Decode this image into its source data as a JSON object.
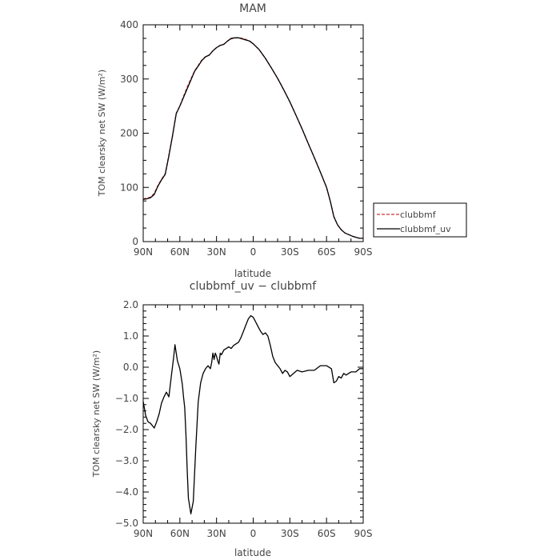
{
  "chart_data": [
    {
      "type": "line",
      "title": "MAM",
      "xlabel": "",
      "ylabel": "TOM clearsky net SW (W/m²)",
      "xlim": [
        90,
        -90
      ],
      "ylim": [
        0,
        400
      ],
      "x_ticks": [
        90,
        60,
        30,
        0,
        -30,
        -60,
        -90
      ],
      "x_tick_labels": [
        "90N",
        "60N",
        "30N",
        "0",
        "30S",
        "60S",
        "90S"
      ],
      "y_ticks": [
        0,
        100,
        200,
        300,
        400
      ],
      "y_tick_labels": [
        "0",
        "100",
        "200",
        "300",
        "400"
      ],
      "legend": {
        "placement": "right",
        "entries": [
          "clubbmf",
          "clubbmf_uv"
        ]
      },
      "series": [
        {
          "name": "clubbmf",
          "color": "#d03030",
          "dash": "dashed",
          "x": [
            90,
            87,
            84,
            81,
            78,
            75,
            72,
            69,
            66,
            63,
            60,
            57,
            54,
            51,
            48,
            45,
            42,
            39,
            36,
            33,
            30,
            27,
            24,
            21,
            18,
            15,
            12,
            9,
            6,
            3,
            0,
            -5,
            -10,
            -15,
            -20,
            -25,
            -30,
            -35,
            -40,
            -45,
            -50,
            -55,
            -60,
            -63,
            -66,
            -69,
            -72,
            -75,
            -78,
            -81,
            -84,
            -87,
            -90
          ],
          "y": [
            79,
            80,
            82,
            89,
            103,
            115,
            125,
            160,
            195,
            237,
            250,
            268,
            285,
            300,
            315,
            325,
            335,
            341,
            344,
            352,
            358,
            362,
            364,
            370,
            374,
            376,
            376,
            375,
            373,
            370,
            365,
            354,
            338,
            320,
            301,
            280,
            258,
            233,
            208,
            181,
            155,
            128,
            100,
            75,
            46,
            31,
            22,
            16,
            13,
            10,
            8,
            6,
            6
          ]
        },
        {
          "name": "clubbmf_uv",
          "color": "#000000",
          "dash": "solid",
          "x": [
            90,
            87,
            84,
            81,
            78,
            75,
            72,
            69,
            66,
            63,
            60,
            57,
            54,
            51,
            48,
            45,
            42,
            39,
            36,
            33,
            30,
            27,
            24,
            21,
            18,
            15,
            12,
            9,
            6,
            3,
            0,
            -5,
            -10,
            -15,
            -20,
            -25,
            -30,
            -35,
            -40,
            -45,
            -50,
            -55,
            -60,
            -63,
            -66,
            -69,
            -72,
            -75,
            -78,
            -81,
            -84,
            -87,
            -90
          ],
          "y": [
            78,
            79,
            81,
            87,
            102,
            114,
            124,
            158,
            196,
            236,
            250,
            266,
            282,
            298,
            314,
            324,
            334,
            341,
            344,
            352,
            358,
            362,
            364,
            370,
            375,
            376,
            376,
            374,
            372,
            370,
            365,
            354,
            338,
            320,
            301,
            280,
            258,
            233,
            208,
            181,
            155,
            128,
            100,
            75,
            46,
            31,
            22,
            16,
            13,
            10,
            8,
            6,
            6
          ]
        }
      ]
    },
    {
      "type": "line",
      "title": "clubbmf_uv − clubbmf",
      "xlabel": "latitude",
      "ylabel": "TOM clearsky net SW (W/m²)",
      "xlim": [
        90,
        -90
      ],
      "ylim": [
        -5.0,
        2.0
      ],
      "x_ticks": [
        90,
        60,
        30,
        0,
        -30,
        -60,
        -90
      ],
      "x_tick_labels": [
        "90N",
        "60N",
        "30N",
        "0",
        "30S",
        "60S",
        "90S"
      ],
      "y_ticks": [
        -5,
        -4,
        -3,
        -2,
        -1,
        0,
        1,
        2
      ],
      "y_tick_labels": [
        "−5.0",
        "−4.0",
        "−3.0",
        "−2.0",
        "−1.0",
        "0.0",
        "1.0",
        "2.0"
      ],
      "series": [
        {
          "name": "",
          "color": "#000000",
          "dash": "solid",
          "x": [
            90,
            88,
            86,
            84,
            81,
            79,
            77,
            75,
            73,
            71,
            69,
            67,
            65,
            64,
            62,
            60,
            58,
            57,
            56,
            55,
            54,
            53,
            51,
            49,
            47,
            45,
            43,
            41,
            39,
            37,
            35,
            34,
            33,
            32,
            31,
            30,
            29,
            28,
            27,
            26,
            24,
            22,
            20,
            18,
            16,
            14,
            12,
            10,
            8,
            6,
            4,
            2,
            0,
            -2,
            -4,
            -6,
            -8,
            -10,
            -12,
            -14,
            -16,
            -18,
            -20,
            -22,
            -24,
            -26,
            -28,
            -30,
            -33,
            -36,
            -40,
            -45,
            -50,
            -55,
            -60,
            -64,
            -66,
            -68,
            -70,
            -72,
            -74,
            -76,
            -78,
            -80,
            -84,
            -87,
            -90
          ],
          "y": [
            -1.1,
            -1.55,
            -1.75,
            -1.8,
            -1.95,
            -1.75,
            -1.5,
            -1.15,
            -0.95,
            -0.8,
            -0.95,
            -0.3,
            0.35,
            0.72,
            0.2,
            -0.05,
            -0.55,
            -0.95,
            -1.3,
            -2.2,
            -3.3,
            -4.2,
            -4.7,
            -4.3,
            -2.6,
            -1.1,
            -0.5,
            -0.2,
            -0.05,
            0.05,
            -0.05,
            0.15,
            0.45,
            0.25,
            0.45,
            0.35,
            0.2,
            0.1,
            0.45,
            0.4,
            0.55,
            0.6,
            0.65,
            0.6,
            0.7,
            0.75,
            0.8,
            0.95,
            1.15,
            1.35,
            1.55,
            1.65,
            1.6,
            1.45,
            1.3,
            1.15,
            1.05,
            1.1,
            1.0,
            0.7,
            0.35,
            0.15,
            0.05,
            -0.05,
            -0.2,
            -0.1,
            -0.15,
            -0.3,
            -0.2,
            -0.1,
            -0.15,
            -0.1,
            -0.1,
            0.05,
            0.05,
            -0.05,
            -0.5,
            -0.45,
            -0.3,
            -0.35,
            -0.2,
            -0.25,
            -0.2,
            -0.15,
            -0.15,
            -0.05,
            -0.05
          ]
        }
      ]
    }
  ]
}
